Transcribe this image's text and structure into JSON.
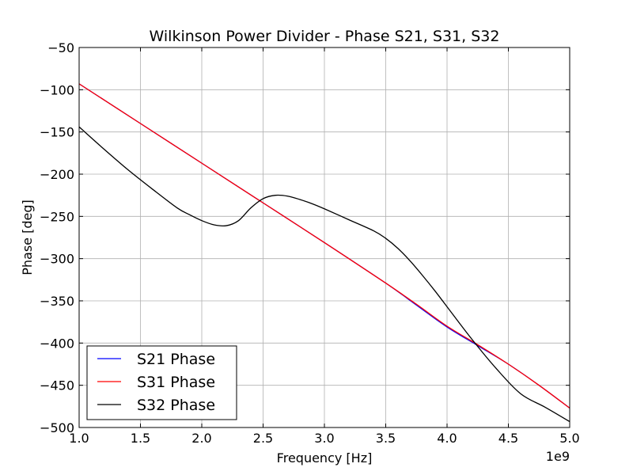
{
  "chart_data": {
    "type": "line",
    "title": "Wilkinson Power Divider - Phase S21, S31, S32",
    "xlabel": "Frequency [Hz]",
    "ylabel": "Phase [deg]",
    "x_offset_label": "1e9",
    "xlim": [
      1.0,
      5.0
    ],
    "ylim": [
      -500,
      -50
    ],
    "x_ticks": [
      1.0,
      1.5,
      2.0,
      2.5,
      3.0,
      3.5,
      4.0,
      4.5,
      5.0
    ],
    "x_tick_labels": [
      "1.0",
      "1.5",
      "2.0",
      "2.5",
      "3.0",
      "3.5",
      "4.0",
      "4.5",
      "5.0"
    ],
    "y_ticks": [
      -50,
      -100,
      -150,
      -200,
      -250,
      -300,
      -350,
      -400,
      -450,
      -500
    ],
    "y_tick_labels": [
      "−50",
      "−100",
      "−150",
      "−200",
      "−250",
      "−300",
      "−350",
      "−400",
      "−450",
      "−500"
    ],
    "grid": true,
    "legend_position": "lower-left",
    "series": [
      {
        "name": "S21 Phase",
        "color": "#0000ff",
        "x": [
          1.0,
          1.5,
          2.0,
          2.5,
          3.0,
          3.5,
          3.75,
          4.0,
          4.25,
          4.5,
          4.75,
          5.0
        ],
        "y": [
          -93,
          -140,
          -187,
          -234,
          -281,
          -329,
          -355,
          -381,
          -403,
          -425,
          -450,
          -477
        ]
      },
      {
        "name": "S31 Phase",
        "color": "#ff0000",
        "x": [
          1.0,
          1.5,
          2.0,
          2.5,
          3.0,
          3.5,
          3.75,
          4.0,
          4.25,
          4.5,
          4.75,
          5.0
        ],
        "y": [
          -93,
          -140,
          -187,
          -234,
          -281,
          -329,
          -354,
          -380,
          -402,
          -425,
          -450,
          -477
        ]
      },
      {
        "name": "S32 Phase",
        "color": "#000000",
        "x": [
          1.0,
          1.2,
          1.4,
          1.6,
          1.8,
          1.9,
          2.0,
          2.1,
          2.2,
          2.3,
          2.4,
          2.5,
          2.6,
          2.7,
          2.8,
          2.9,
          3.0,
          3.2,
          3.4,
          3.5,
          3.6,
          3.7,
          3.8,
          3.9,
          4.0,
          4.2,
          4.4,
          4.6,
          4.8,
          5.0
        ],
        "y": [
          -144,
          -170,
          -195,
          -218,
          -240,
          -248,
          -255,
          -260,
          -261,
          -255,
          -240,
          -229,
          -225,
          -226,
          -230,
          -235,
          -241,
          -254,
          -267,
          -276,
          -288,
          -303,
          -320,
          -338,
          -357,
          -395,
          -430,
          -460,
          -476,
          -493
        ]
      }
    ]
  }
}
